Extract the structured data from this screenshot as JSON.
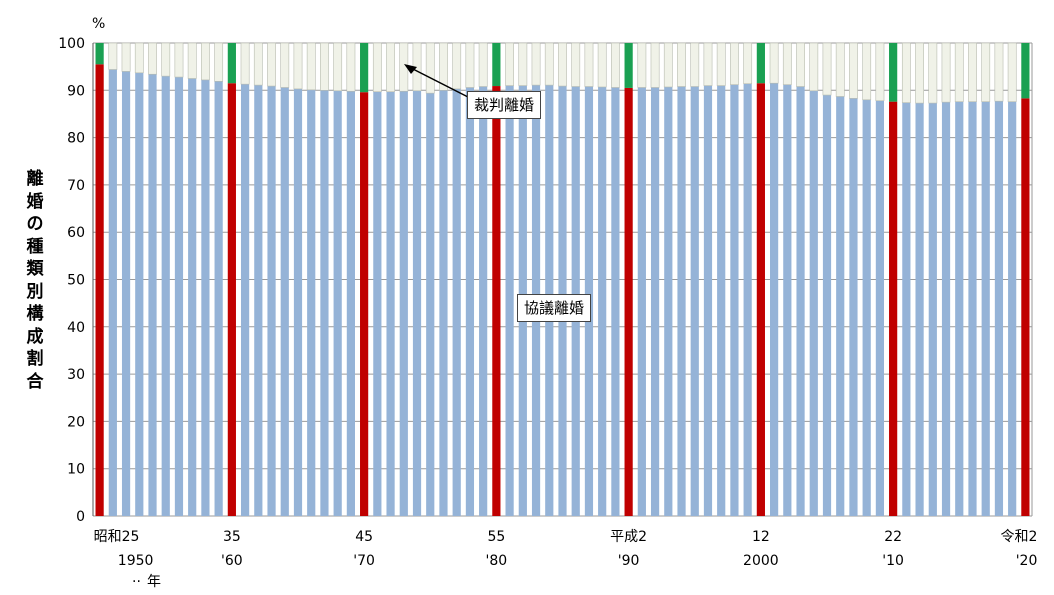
{
  "chart_data": {
    "type": "bar",
    "stacked": true,
    "unit_label": "%",
    "ylabel": "離婚の種類別構成割合",
    "ylim": [
      0,
      100
    ],
    "yticks": [
      0,
      10,
      20,
      30,
      40,
      50,
      60,
      70,
      80,
      90,
      100
    ],
    "grid": true,
    "x": [
      1950,
      1951,
      1952,
      1953,
      1954,
      1955,
      1956,
      1957,
      1958,
      1959,
      1960,
      1961,
      1962,
      1963,
      1964,
      1965,
      1966,
      1967,
      1968,
      1969,
      1970,
      1971,
      1972,
      1973,
      1974,
      1975,
      1976,
      1977,
      1978,
      1979,
      1980,
      1981,
      1982,
      1983,
      1984,
      1985,
      1986,
      1987,
      1988,
      1989,
      1990,
      1991,
      1992,
      1993,
      1994,
      1995,
      1996,
      1997,
      1998,
      1999,
      2000,
      2001,
      2002,
      2003,
      2004,
      2005,
      2006,
      2007,
      2008,
      2009,
      2010,
      2011,
      2012,
      2013,
      2014,
      2015,
      2016,
      2017,
      2018,
      2019,
      2020
    ],
    "highlight_years": [
      1950,
      1960,
      1970,
      1980,
      1990,
      2000,
      2010,
      2020
    ],
    "series": [
      {
        "name": "協議離婚",
        "values": [
          95.5,
          94.4,
          94.0,
          93.7,
          93.4,
          93.0,
          92.8,
          92.5,
          92.2,
          91.9,
          91.5,
          91.3,
          91.1,
          90.9,
          90.6,
          90.3,
          90.1,
          90.0,
          89.9,
          89.8,
          89.6,
          89.7,
          89.7,
          89.8,
          89.9,
          89.4,
          90.0,
          90.3,
          90.6,
          90.8,
          90.9,
          91.0,
          91.0,
          91.1,
          91.1,
          90.9,
          90.8,
          90.8,
          90.7,
          90.6,
          90.5,
          90.6,
          90.6,
          90.7,
          90.8,
          90.8,
          91.0,
          91.0,
          91.2,
          91.4,
          91.5,
          91.5,
          91.2,
          90.8,
          89.9,
          89.0,
          88.7,
          88.3,
          88.0,
          87.8,
          87.6,
          87.4,
          87.3,
          87.3,
          87.5,
          87.6,
          87.6,
          87.6,
          87.7,
          87.6,
          88.3
        ]
      },
      {
        "name": "裁判離婚",
        "values": [
          4.5,
          5.6,
          6.0,
          6.3,
          6.6,
          7.0,
          7.2,
          7.5,
          7.8,
          8.1,
          8.5,
          8.7,
          8.9,
          9.1,
          9.4,
          9.7,
          9.9,
          10.0,
          10.1,
          10.2,
          10.4,
          10.3,
          10.3,
          10.2,
          10.1,
          10.6,
          10.0,
          9.7,
          9.4,
          9.2,
          9.1,
          9.0,
          9.0,
          8.9,
          8.9,
          9.1,
          9.2,
          9.2,
          9.3,
          9.4,
          9.5,
          9.4,
          9.4,
          9.3,
          9.2,
          9.2,
          9.0,
          9.0,
          8.8,
          8.6,
          8.5,
          8.5,
          8.8,
          9.2,
          10.1,
          11.0,
          11.3,
          11.7,
          12.0,
          12.2,
          12.4,
          12.6,
          12.7,
          12.7,
          12.5,
          12.4,
          12.4,
          12.4,
          12.3,
          12.4,
          11.7
        ]
      }
    ],
    "annotations": [
      "裁判離婚",
      "協議離婚"
    ],
    "xticks": [
      {
        "year": 1950,
        "era": "昭和25",
        "western": "1950"
      },
      {
        "year": 1960,
        "era": "35",
        "western": "'60"
      },
      {
        "year": 1970,
        "era": "45",
        "western": "'70"
      },
      {
        "year": 1980,
        "era": "55",
        "western": "'80"
      },
      {
        "year": 1990,
        "era": "平成2",
        "western": "'90"
      },
      {
        "year": 2000,
        "era": "12",
        "western": "2000"
      },
      {
        "year": 2010,
        "era": "22",
        "western": "'10"
      },
      {
        "year": 2020,
        "era": "令和2",
        "western": "'20"
      }
    ],
    "year_suffix": "年",
    "colors": {
      "kyogi": "#95b3d7",
      "saiban": "#f0f2e8",
      "highlight_kyogi": "#c00000",
      "highlight_saiban": "#1aa052",
      "grid": "#9a9a9a"
    }
  }
}
